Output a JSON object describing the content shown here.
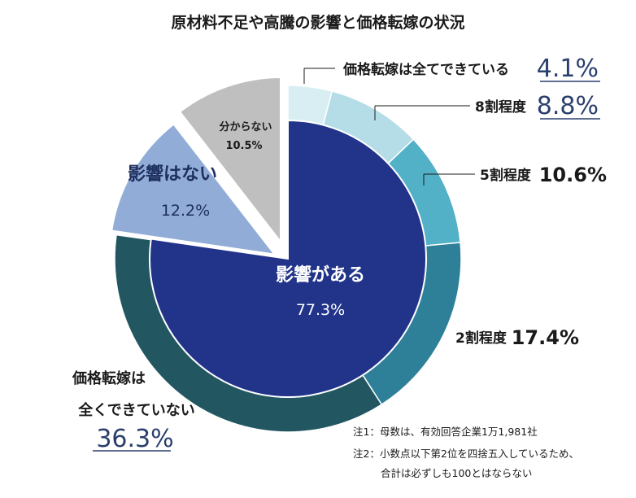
{
  "chart_data": {
    "type": "pie",
    "title": "原材料不足や高騰の影響と価格転嫁の状況",
    "inner": [
      {
        "label": "影響がある",
        "value": 77.3,
        "value_text": "77.3%",
        "color": "#21348a"
      },
      {
        "label": "影響はない",
        "value": 12.2,
        "value_text": "12.2%",
        "color": "#91acd7"
      },
      {
        "label": "分からない",
        "value": 10.5,
        "value_text": "10.5%",
        "color": "#bfbfbf"
      }
    ],
    "outer": [
      {
        "label": "価格転嫁は全てできている",
        "value": 4.1,
        "value_text": "4.1%",
        "color": "#d9eef3"
      },
      {
        "label": "8割程度",
        "value": 8.8,
        "value_text": "8.8%",
        "color": "#b5dde7"
      },
      {
        "label": "5割程度",
        "value": 10.6,
        "value_text": "10.6%",
        "color": "#52b0c7"
      },
      {
        "label": "2割程度",
        "value": 17.4,
        "value_text": "17.4%",
        "color": "#2e8099"
      },
      {
        "label_lines": [
          "価格転嫁は",
          "全くできていない"
        ],
        "value": 36.3,
        "value_text": "36.3%",
        "color": "#225762"
      }
    ],
    "notes": [
      "注1：母数は、有効回答企業1万1,981社",
      "注2：小数点以下第2位を四捨五入しているため、",
      "合計は必ずしも100とはならない"
    ]
  }
}
